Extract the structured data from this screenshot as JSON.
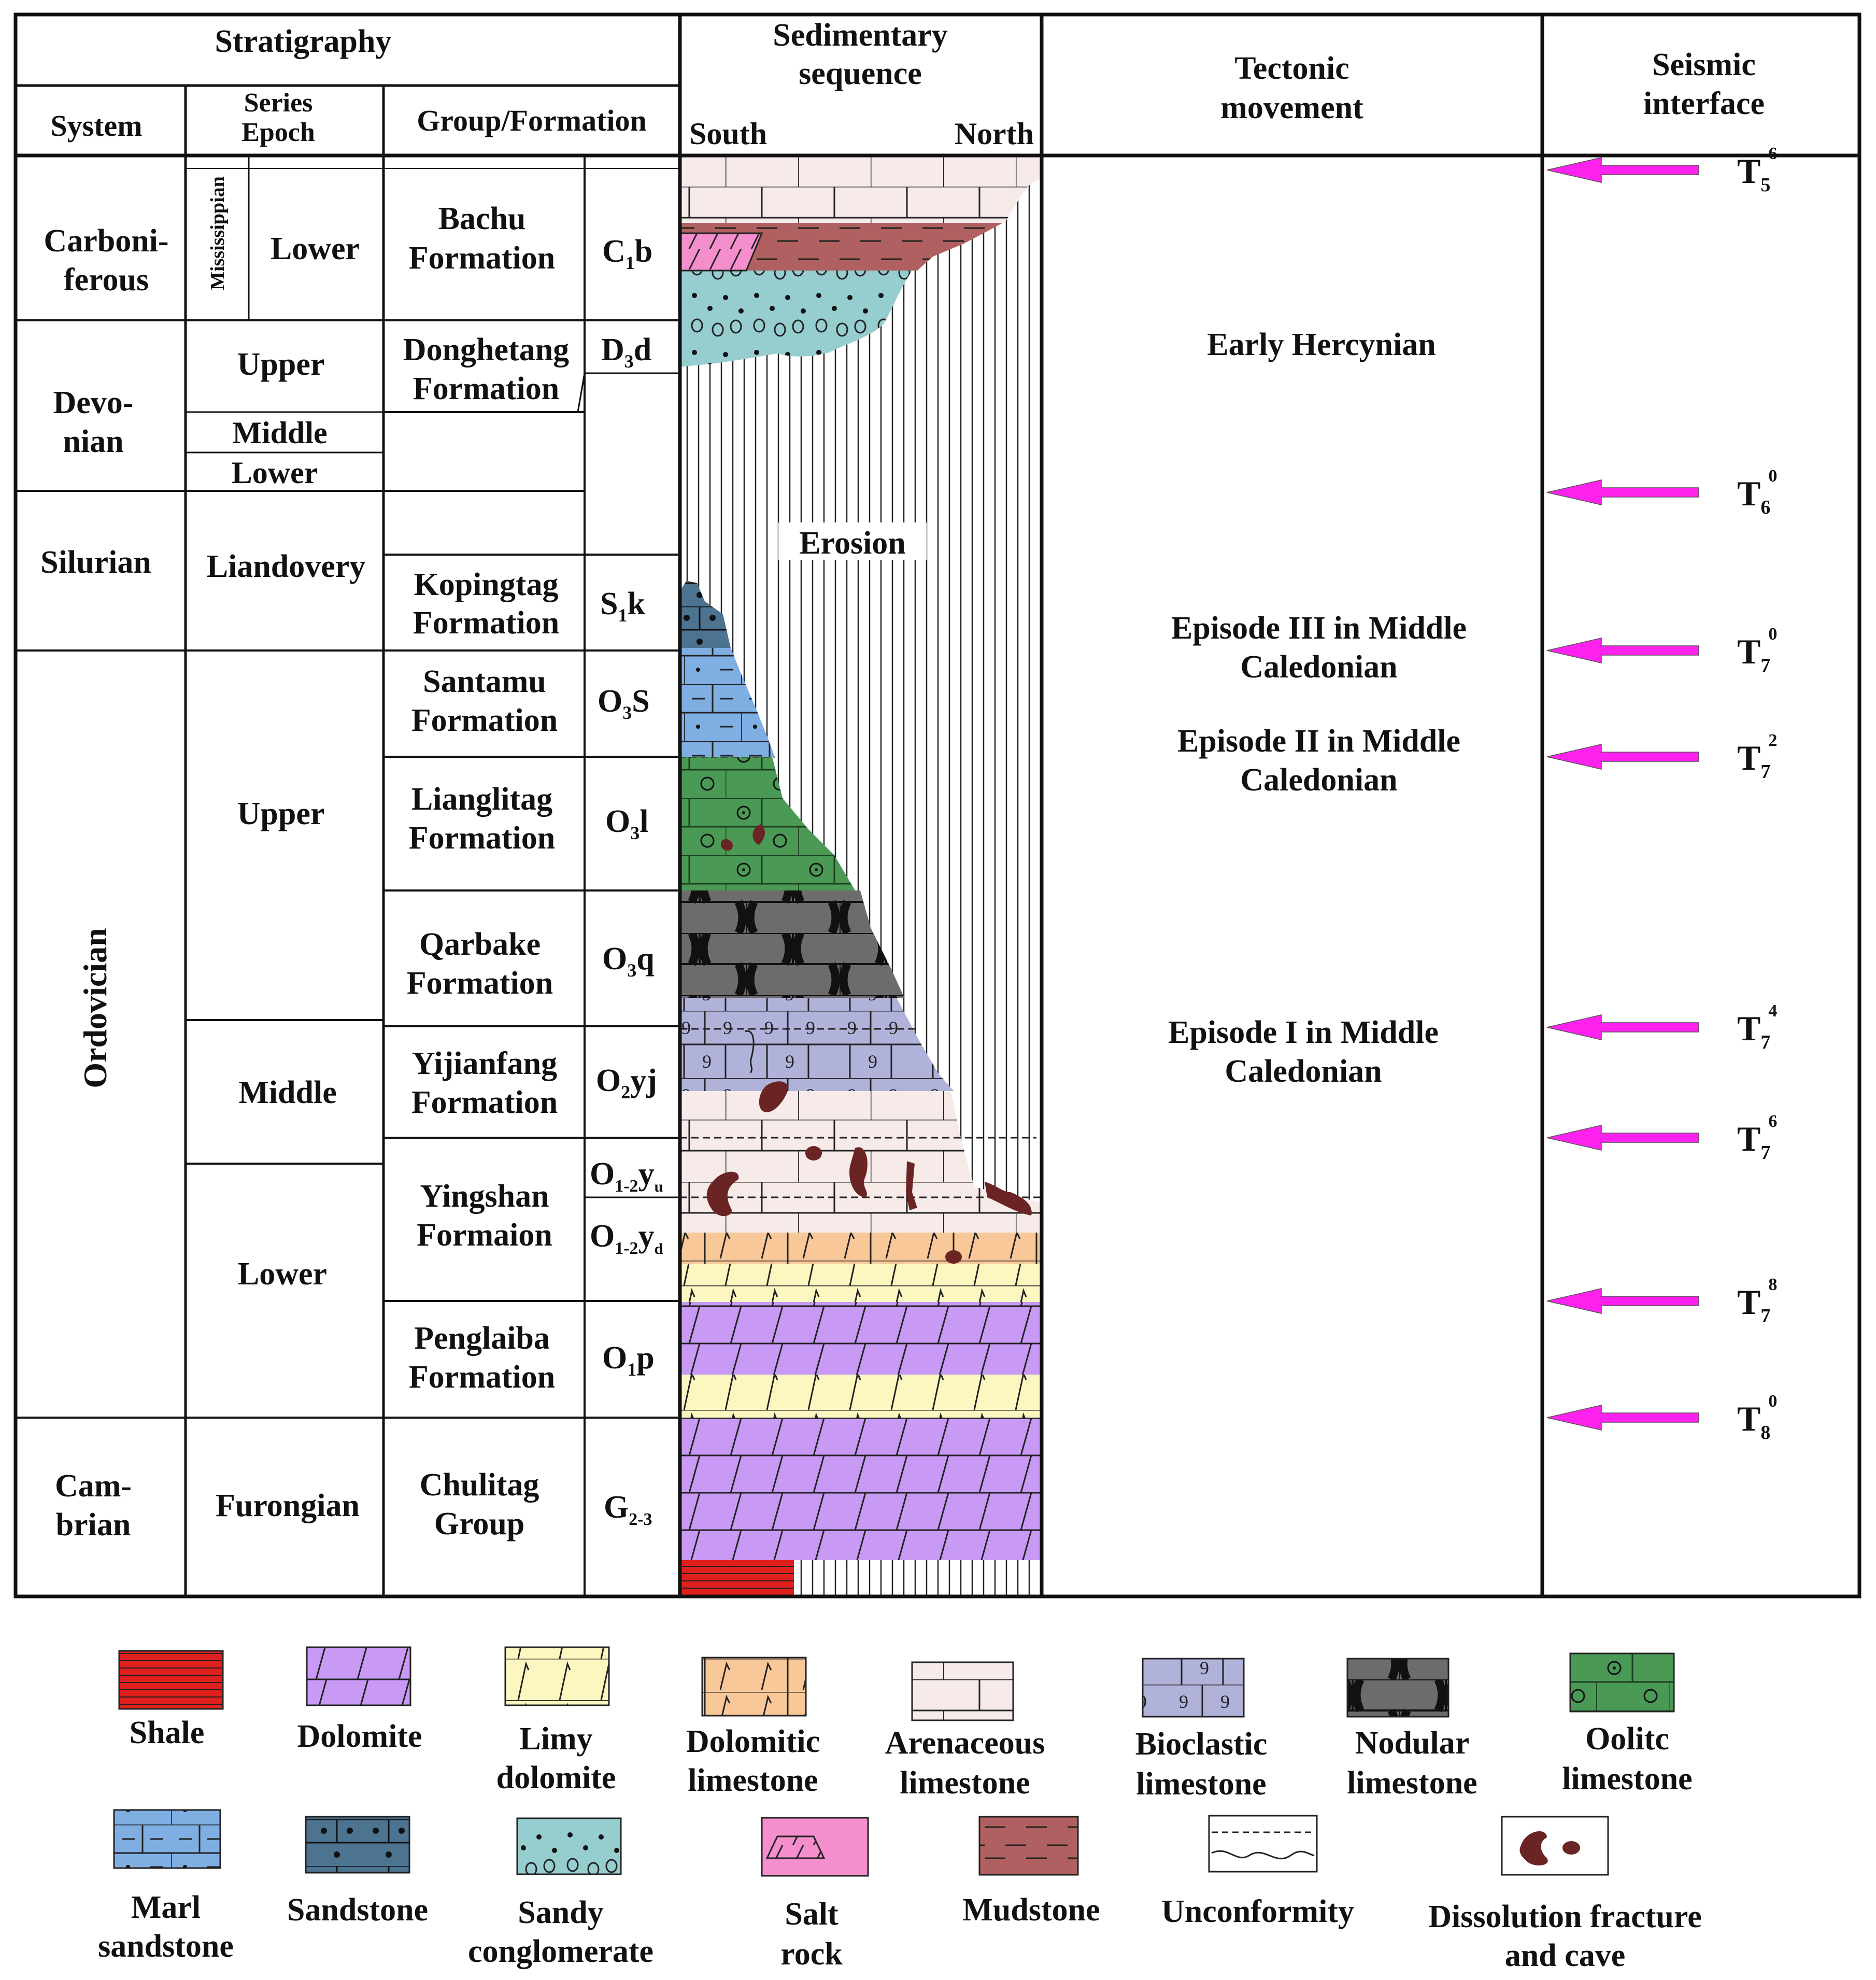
{
  "header": {
    "stratigraphy": "Stratigraphy",
    "system": "System",
    "series_line1": "Series",
    "series_line2": "Epoch",
    "group_formation": "Group/Formation",
    "sedimentary_line1": "Sedimentary",
    "sedimentary_line2": "sequence",
    "south": "South",
    "north": "North",
    "tectonic_line1": "Tectonic",
    "tectonic_line2": "movement",
    "seismic_line1": "Seismic",
    "seismic_line2": "interface"
  },
  "systems": [
    {
      "id": "carboniferous",
      "lines": [
        "Carboni-",
        "ferous"
      ]
    },
    {
      "id": "devonian",
      "lines": [
        "Devo-",
        "nian"
      ]
    },
    {
      "id": "silurian",
      "lines": [
        "Silurian"
      ]
    },
    {
      "id": "ordovician",
      "lines": [
        "Ordovician"
      ],
      "vertical": true
    },
    {
      "id": "cambrian",
      "lines": [
        "Cam-",
        "brian"
      ]
    }
  ],
  "sub_epoch": "Mississippian",
  "series": [
    {
      "id": "carb-lower",
      "text": "Lower"
    },
    {
      "id": "dev-upper",
      "text": "Upper"
    },
    {
      "id": "dev-middle",
      "text": "Middle"
    },
    {
      "id": "dev-lower",
      "text": "Lower"
    },
    {
      "id": "sil-llandovery",
      "text": "Liandovery"
    },
    {
      "id": "ord-upper",
      "text": "Upper"
    },
    {
      "id": "ord-middle",
      "text": "Middle"
    },
    {
      "id": "ord-lower",
      "text": "Lower"
    },
    {
      "id": "cam-furongian",
      "text": "Furongian"
    }
  ],
  "formations": [
    {
      "id": "bachu",
      "lines": [
        "Bachu",
        "Formation"
      ],
      "code": "C",
      "sub": "1",
      "suffix": "b"
    },
    {
      "id": "donghetang",
      "lines": [
        "Donghetang",
        "Formation"
      ],
      "code": "D",
      "sub": "3",
      "suffix": "d"
    },
    {
      "id": "kopingtag",
      "lines": [
        "Kopingtag",
        "Formation"
      ],
      "code": "S",
      "sub": "1",
      "suffix": "k"
    },
    {
      "id": "santamu",
      "lines": [
        "Santamu",
        "Formation"
      ],
      "code": "O",
      "sub": "3",
      "suffix": "S"
    },
    {
      "id": "lianglitag",
      "lines": [
        "Lianglitag",
        "Formation"
      ],
      "code": "O",
      "sub": "3",
      "suffix": "l"
    },
    {
      "id": "qarbake",
      "lines": [
        "Qarbake",
        "Formation"
      ],
      "code": "O",
      "sub": "3",
      "suffix": "q"
    },
    {
      "id": "yijianfang",
      "lines": [
        "Yijianfang",
        "Formation"
      ],
      "code": "O",
      "sub": "2",
      "suffix": "yj"
    },
    {
      "id": "yingshan",
      "lines": [
        "Yingshan",
        "Formaion"
      ]
    },
    {
      "id": "yingshan-upper",
      "code": "O",
      "sub": "1-2",
      "suffix": "y",
      "suffix_sub": "u"
    },
    {
      "id": "yingshan-lower",
      "code": "O",
      "sub": "1-2",
      "suffix": "y",
      "suffix_sub": "d"
    },
    {
      "id": "penglaiba",
      "lines": [
        "Penglaiba",
        "Formation"
      ],
      "code": "O",
      "sub": "1",
      "suffix": "p"
    },
    {
      "id": "chulitag",
      "lines": [
        "Chulitag",
        "Group"
      ],
      "code": "G",
      "sub": "2-3",
      "suffix": ""
    }
  ],
  "erosion_label": "Erosion",
  "tectonic_events": [
    {
      "id": "early-hercynian",
      "lines": [
        "Early Hercynian"
      ]
    },
    {
      "id": "episode-iii",
      "lines": [
        "Episode III in Middle",
        "Caledonian"
      ]
    },
    {
      "id": "episode-ii",
      "lines": [
        "Episode II in Middle",
        "Caledonian"
      ]
    },
    {
      "id": "episode-i",
      "lines": [
        "Episode I in Middle",
        "Caledonian"
      ]
    }
  ],
  "seismic_interfaces": [
    {
      "id": "t5-6",
      "base": "T",
      "sub": "5",
      "sup": "6"
    },
    {
      "id": "t6-0",
      "base": "T",
      "sub": "6",
      "sup": "0"
    },
    {
      "id": "t7-0",
      "base": "T",
      "sub": "7",
      "sup": "0"
    },
    {
      "id": "t7-2",
      "base": "T",
      "sub": "7",
      "sup": "2"
    },
    {
      "id": "t7-4",
      "base": "T",
      "sub": "7",
      "sup": "4"
    },
    {
      "id": "t7-6",
      "base": "T",
      "sub": "7",
      "sup": "6"
    },
    {
      "id": "t7-8",
      "base": "T",
      "sub": "7",
      "sup": "8"
    },
    {
      "id": "t8-0",
      "base": "T",
      "sub": "8",
      "sup": "0"
    }
  ],
  "legend": [
    {
      "id": "shale",
      "lines": [
        "Shale"
      ]
    },
    {
      "id": "dolomite",
      "lines": [
        "Dolomite"
      ]
    },
    {
      "id": "limy-dolomite",
      "lines": [
        "Limy",
        "dolomite"
      ]
    },
    {
      "id": "dolomitic-limestone",
      "lines": [
        "Dolomitic",
        "limestone"
      ]
    },
    {
      "id": "arenaceous-limestone",
      "lines": [
        "Arenaceous",
        "limestone"
      ]
    },
    {
      "id": "bioclastic-limestone",
      "lines": [
        "Bioclastic",
        "limestone"
      ]
    },
    {
      "id": "nodular-limestone",
      "lines": [
        "Nodular",
        "limestone"
      ]
    },
    {
      "id": "oolitic-limestone",
      "lines": [
        "Oolitc",
        "limestone"
      ]
    },
    {
      "id": "marl-sandstone",
      "lines": [
        "Marl",
        "sandstone"
      ]
    },
    {
      "id": "sandstone",
      "lines": [
        "Sandstone"
      ]
    },
    {
      "id": "sandy-conglomerate",
      "lines": [
        "Sandy",
        "conglomerate"
      ]
    },
    {
      "id": "salt-rock",
      "lines": [
        "Salt",
        "rock"
      ]
    },
    {
      "id": "mudstone",
      "lines": [
        "Mudstone"
      ]
    },
    {
      "id": "unconformity",
      "lines": [
        "Unconformity"
      ]
    },
    {
      "id": "dissolution",
      "lines": [
        "Dissolution fracture",
        "and cave"
      ]
    }
  ],
  "colors": {
    "shale": "#e0201c",
    "dolomite": "#c89af5",
    "limy_dolomite": "#fcf7c0",
    "dolomitic_limestone": "#f9c898",
    "arenaceous_limestone": "#f7ebea",
    "bioclastic_limestone": "#b1b2da",
    "nodular_limestone": "#6c6c6c",
    "oolitic_limestone": "#4a9a55",
    "marl_sandstone": "#7faee3",
    "sandstone": "#4c7390",
    "sandy_conglomerate": "#96cdce",
    "salt_rock": "#f48ecc",
    "mudstone": "#b06060",
    "cave": "#6b2424",
    "arrow": "#ff22ee"
  }
}
